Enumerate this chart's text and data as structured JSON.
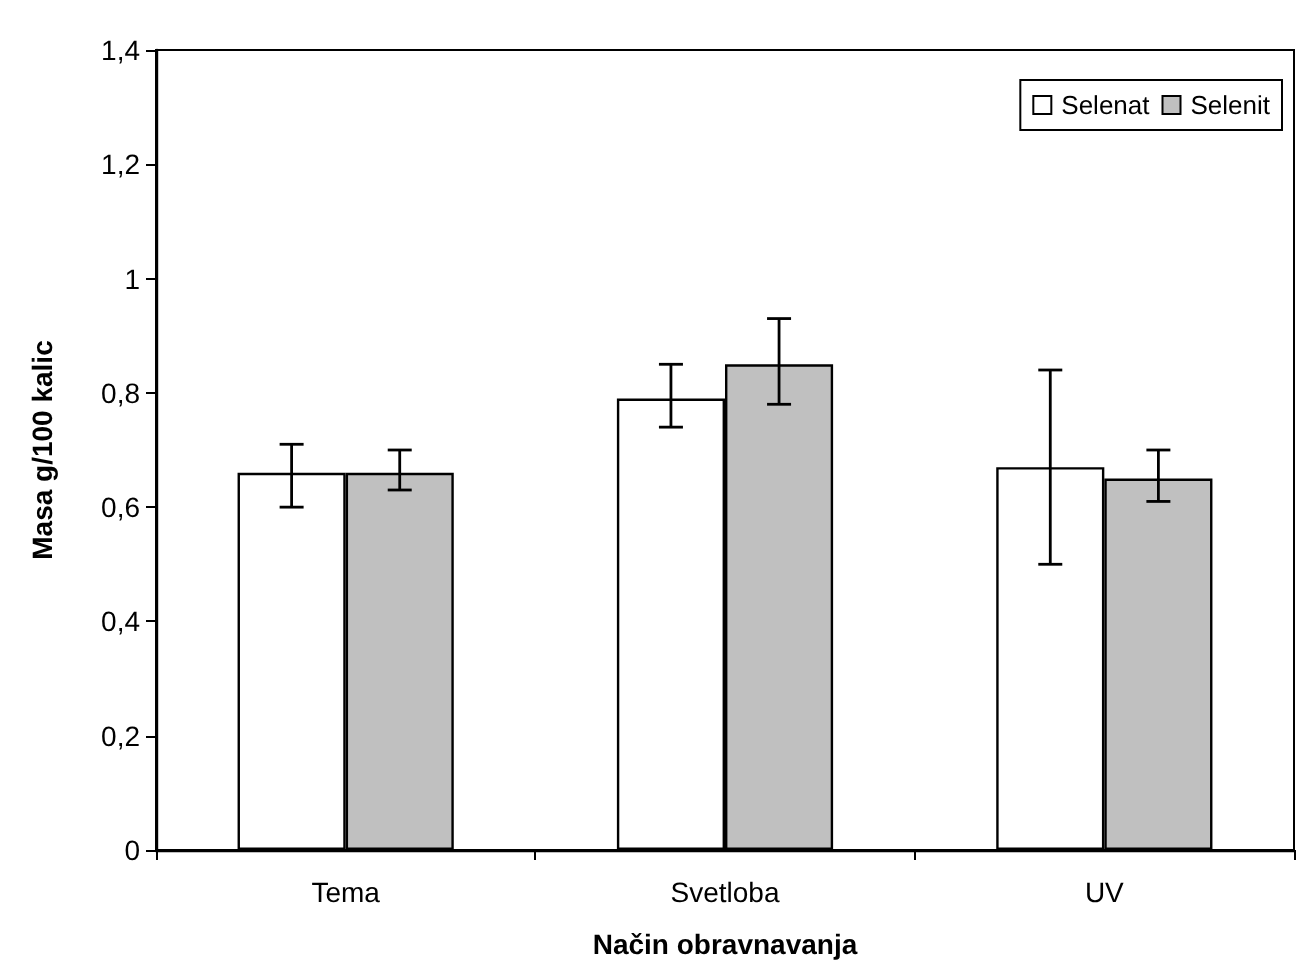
{
  "chart_data": {
    "type": "bar",
    "xlabel": "Način obravnavanja",
    "ylabel": "Masa g/100 kalic",
    "categories": [
      "Tema",
      "Svetloba",
      "UV"
    ],
    "series": [
      {
        "name": "Selenat",
        "color": "#ffffff",
        "values": [
          0.66,
          0.79,
          0.67
        ],
        "errors": [
          [
            0.6,
            0.71
          ],
          [
            0.74,
            0.85
          ],
          [
            0.5,
            0.84
          ]
        ]
      },
      {
        "name": "Selenit",
        "color": "#c0c0c0",
        "values": [
          0.66,
          0.85,
          0.65
        ],
        "errors": [
          [
            0.63,
            0.7
          ],
          [
            0.78,
            0.93
          ],
          [
            0.61,
            0.7
          ]
        ]
      }
    ],
    "ylim": [
      0,
      1.4
    ],
    "yticks": [
      {
        "value": 0,
        "label": "0"
      },
      {
        "value": 0.2,
        "label": "0,2"
      },
      {
        "value": 0.4,
        "label": "0,4"
      },
      {
        "value": 0.6,
        "label": "0,6"
      },
      {
        "value": 0.8,
        "label": "0,8"
      },
      {
        "value": 1,
        "label": "1"
      },
      {
        "value": 1.2,
        "label": "1,2"
      },
      {
        "value": 1.4,
        "label": "1,4"
      }
    ],
    "grid": false,
    "legend": "top right"
  }
}
